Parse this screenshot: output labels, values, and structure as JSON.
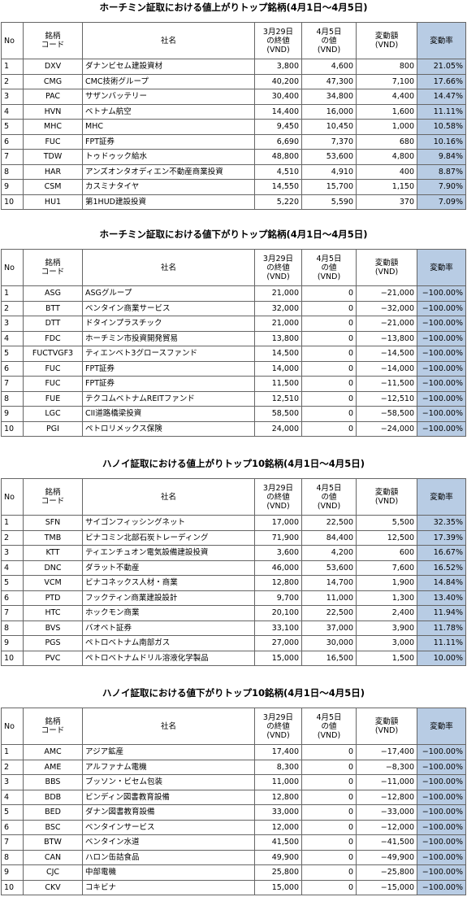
{
  "sections": [
    {
      "title": "ホーチミン証取における値上がりトップ銘柄(4月1日〜4月5日)",
      "headers": [
        "No",
        "銘柄\nコード",
        "社名",
        "3月29日\nの終値\n(VND)",
        "4月5日\nの値\n(VND)",
        "変動額\n(VND)",
        "変動率"
      ],
      "rows": [
        [
          "1",
          "DXV",
          "ダナンビセム建設資材",
          "3,800",
          "4,600",
          "800",
          "21.05%"
        ],
        [
          "2",
          "CMG",
          "CMC技術グループ",
          "40,200",
          "47,300",
          "7,100",
          "17.66%"
        ],
        [
          "3",
          "PAC",
          "サザンバッテリー",
          "30,400",
          "34,800",
          "4,400",
          "14.47%"
        ],
        [
          "4",
          "HVN",
          "ベトナム航空",
          "14,400",
          "16,000",
          "1,600",
          "11.11%"
        ],
        [
          "5",
          "MHC",
          "MHC",
          "9,450",
          "10,450",
          "1,000",
          "10.58%"
        ],
        [
          "6",
          "FUC",
          "FPT証券",
          "6,690",
          "7,370",
          "680",
          "10.16%"
        ],
        [
          "7",
          "TDW",
          "トゥドゥック給水",
          "48,800",
          "53,600",
          "4,800",
          "9.84%"
        ],
        [
          "8",
          "HAR",
          "アンズオンタオディエン不動産商業投資",
          "4,510",
          "4,910",
          "400",
          "8.87%"
        ],
        [
          "9",
          "CSM",
          "カスミナタイヤ",
          "14,550",
          "15,700",
          "1,150",
          "7.90%"
        ],
        [
          "10",
          "HU1",
          "第1HUD建設投資",
          "5,220",
          "5,590",
          "370",
          "7.09%"
        ]
      ]
    },
    {
      "title": "ホーチミン証取における値下がりトップ銘柄(4月1日〜4月5日)",
      "headers": [
        "No",
        "銘柄\nコード",
        "社名",
        "3月29日\nの終値\n(VND)",
        "4月5日\nの値\n(VND)",
        "変動額\n(VND)",
        "変動率"
      ],
      "rows": [
        [
          "1",
          "ASG",
          "ASGグループ",
          "21,000",
          "0",
          "−21,000",
          "−100.00%"
        ],
        [
          "2",
          "BTT",
          "ベンタイン商業サービス",
          "32,000",
          "0",
          "−32,000",
          "−100.00%"
        ],
        [
          "3",
          "DTT",
          "ドタインプラスチック",
          "21,000",
          "0",
          "−21,000",
          "−100.00%"
        ],
        [
          "4",
          "FDC",
          "ホーチミン市投資開発貿易",
          "13,800",
          "0",
          "−13,800",
          "−100.00%"
        ],
        [
          "5",
          "FUCTVGF3",
          "ティエンベト3グロースファンド",
          "14,500",
          "0",
          "−14,500",
          "−100.00%"
        ],
        [
          "6",
          "FUC",
          "FPT証券",
          "14,000",
          "0",
          "−14,000",
          "−100.00%"
        ],
        [
          "7",
          "FUC",
          "FPT証券",
          "11,500",
          "0",
          "−11,500",
          "−100.00%"
        ],
        [
          "8",
          "FUE",
          "テクコムベトナムREITファンド",
          "12,510",
          "0",
          "−12,510",
          "−100.00%"
        ],
        [
          "9",
          "LGC",
          "CII道路橋梁投資",
          "58,500",
          "0",
          "−58,500",
          "−100.00%"
        ],
        [
          "10",
          "PGI",
          "ペトロリメックス保険",
          "24,000",
          "0",
          "−24,000",
          "−100.00%"
        ]
      ]
    },
    {
      "title": "ハノイ証取における値上がりトップ10銘柄(4月1日〜4月5日)",
      "headers": [
        "No",
        "銘柄\nコード",
        "社名",
        "3月29日\nの終値\n(VND)",
        "4月5日\nの値\n(VND)",
        "変動額\n(VND)",
        "変動率"
      ],
      "rows": [
        [
          "1",
          "SFN",
          "サイゴンフィッシングネット",
          "17,000",
          "22,500",
          "5,500",
          "32.35%"
        ],
        [
          "2",
          "TMB",
          "ビナコミン北部石炭トレーディング",
          "71,900",
          "84,400",
          "12,500",
          "17.39%"
        ],
        [
          "3",
          "KTT",
          "ティエンチュオン電気設備建設投資",
          "3,600",
          "4,200",
          "600",
          "16.67%"
        ],
        [
          "4",
          "DNC",
          "ダラット不動産",
          "46,000",
          "53,600",
          "7,600",
          "16.52%"
        ],
        [
          "5",
          "VCM",
          "ビナコネックス人材・商業",
          "12,800",
          "14,700",
          "1,900",
          "14.84%"
        ],
        [
          "6",
          "PTD",
          "フックティン商業建設設計",
          "9,700",
          "11,000",
          "1,300",
          "13.40%"
        ],
        [
          "7",
          "HTC",
          "ホックモン商業",
          "20,100",
          "22,500",
          "2,400",
          "11.94%"
        ],
        [
          "8",
          "BVS",
          "バオベト証券",
          "33,100",
          "37,000",
          "3,900",
          "11.78%"
        ],
        [
          "9",
          "PGS",
          "ペトロベトナム南部ガス",
          "27,000",
          "30,000",
          "3,000",
          "11.11%"
        ],
        [
          "10",
          "PVC",
          "ペトロベトナムドリル溶液化学製品",
          "15,000",
          "16,500",
          "1,500",
          "10.00%"
        ]
      ]
    },
    {
      "title": "ハノイ証取における値下がりトップ10銘柄(4月1日〜4月5日)",
      "headers": [
        "No",
        "銘柄\nコード",
        "社名",
        "3月29日\nの終値\n(VND)",
        "4月5日\nの値\n(VND)",
        "変動額\n(VND)",
        "変動率"
      ],
      "rows": [
        [
          "1",
          "AMC",
          "アジア鉱産",
          "17,400",
          "0",
          "−17,400",
          "−100.00%"
        ],
        [
          "2",
          "AME",
          "アルファナム電機",
          "8,300",
          "0",
          "−8,300",
          "−100.00%"
        ],
        [
          "3",
          "BBS",
          "ブッソン・ビセム包装",
          "11,000",
          "0",
          "−11,000",
          "−100.00%"
        ],
        [
          "4",
          "BDB",
          "ビンディン図書教育設備",
          "12,800",
          "0",
          "−12,800",
          "−100.00%"
        ],
        [
          "5",
          "BED",
          "ダナン図書教育設備",
          "33,000",
          "0",
          "−33,000",
          "−100.00%"
        ],
        [
          "6",
          "BSC",
          "ベンタインサービス",
          "12,000",
          "0",
          "−12,000",
          "−100.00%"
        ],
        [
          "7",
          "BTW",
          "ベンタイン水道",
          "41,500",
          "0",
          "−41,500",
          "−100.00%"
        ],
        [
          "8",
          "CAN",
          "ハロン缶詰食品",
          "49,900",
          "0",
          "−49,900",
          "−100.00%"
        ],
        [
          "9",
          "CJC",
          "中部電機",
          "25,800",
          "0",
          "−25,800",
          "−100.00%"
        ],
        [
          "10",
          "CKV",
          "コキビナ",
          "15,000",
          "0",
          "−15,000",
          "−100.00%"
        ]
      ]
    }
  ]
}
